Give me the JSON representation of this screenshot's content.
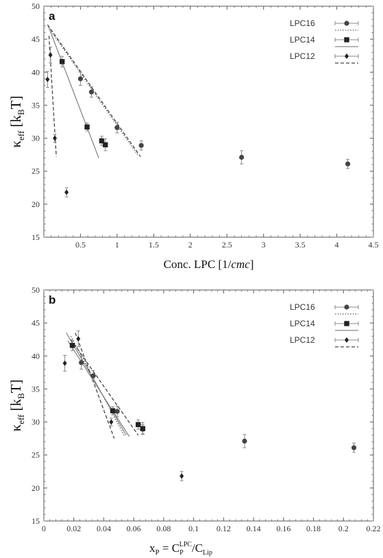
{
  "chart_data": [
    {
      "type": "scatter",
      "panel_label": "a",
      "xlabel": "Conc. LPC [1/cmc]",
      "ylabel": "κ_eff [k_B T]",
      "xlim": [
        0,
        4.5
      ],
      "ylim": [
        15,
        50
      ],
      "xticks": [
        "0.5",
        "1",
        "1.5",
        "2",
        "2.5",
        "3",
        "3.5",
        "4",
        "4.5"
      ],
      "yticks": [
        "15",
        "20",
        "25",
        "30",
        "35",
        "40",
        "45",
        "50"
      ],
      "legend_position": "top-right",
      "series": [
        {
          "name": "LPC16",
          "marker": "circle",
          "line": "dotted",
          "x": [
            0.5,
            0.65,
            1.0,
            1.33,
            2.7,
            4.15
          ],
          "y": [
            39.0,
            37.0,
            31.6,
            28.9,
            27.1,
            26.1
          ],
          "err": [
            1.0,
            0.8,
            0.8,
            0.7,
            1.0,
            0.7
          ],
          "fit": [
            [
              0.08,
              46.5
            ],
            [
              1.28,
              27.5
            ]
          ]
        },
        {
          "name": "LPC14",
          "marker": "square",
          "line": "solid",
          "x": [
            0.25,
            0.59,
            0.79,
            0.84
          ],
          "y": [
            41.6,
            31.7,
            29.6,
            29.0
          ],
          "err": [
            0.8,
            0.6,
            0.7,
            0.9
          ],
          "fit": [
            [
              0.06,
              47.0
            ],
            [
              0.75,
              27.0
            ]
          ]
        },
        {
          "name": "LPC12",
          "marker": "diamond",
          "line": "dashed",
          "x": [
            0.05,
            0.09,
            0.15,
            0.31
          ],
          "y": [
            38.9,
            42.6,
            30.0,
            21.8
          ],
          "err": [
            1.2,
            1.2,
            0.6,
            0.7
          ],
          "fit": [
            [
              0.07,
              45.5
            ],
            [
              0.17,
              27.2
            ]
          ]
        }
      ],
      "extra_fits": [
        {
          "style": "dashed",
          "from": [
            0.05,
            47.2
          ],
          "to": [
            1.32,
            27.2
          ]
        }
      ]
    },
    {
      "type": "scatter",
      "panel_label": "b",
      "xlabel": "x_P = C_P^LPC / C_Lip",
      "ylabel": "κ_eff [k_B T]",
      "xlim": [
        0,
        0.22
      ],
      "ylim": [
        15,
        50
      ],
      "xticks": [
        "0",
        "0.02",
        "0.04",
        "0.06",
        "0.08",
        "0.1",
        "0.12",
        "0.14",
        "0.16",
        "0.18",
        "0.2",
        "0.22"
      ],
      "yticks": [
        "15",
        "20",
        "25",
        "30",
        "35",
        "40",
        "45",
        "50"
      ],
      "legend_position": "top-right",
      "series": [
        {
          "name": "LPC16",
          "marker": "circle",
          "line": "dotted",
          "x": [
            0.025,
            0.033,
            0.049,
            0.066,
            0.134,
            0.207
          ],
          "y": [
            39.0,
            37.0,
            31.6,
            28.9,
            27.1,
            26.1
          ],
          "err": [
            1.0,
            0.8,
            0.8,
            0.7,
            1.0,
            0.7
          ],
          "fit": [
            [
              0.018,
              43.0
            ],
            [
              0.054,
              27.8
            ]
          ]
        },
        {
          "name": "LPC14",
          "marker": "square",
          "line": "solid",
          "x": [
            0.019,
            0.046,
            0.063,
            0.066
          ],
          "y": [
            41.6,
            31.7,
            29.6,
            29.0
          ],
          "err": [
            0.8,
            0.6,
            0.7,
            0.9
          ],
          "fit": [
            [
              0.015,
              43.5
            ],
            [
              0.055,
              28.0
            ]
          ]
        },
        {
          "name": "LPC12",
          "marker": "diamond",
          "line": "dashed",
          "x": [
            0.014,
            0.023,
            0.045,
            0.092
          ],
          "y": [
            38.9,
            42.6,
            30.0,
            21.8
          ],
          "err": [
            1.2,
            1.2,
            0.6,
            0.7
          ],
          "fit": [
            [
              0.021,
              43.5
            ],
            [
              0.047,
              27.5
            ]
          ]
        }
      ],
      "extra_fits": [
        {
          "style": "dashed",
          "from": [
            0.018,
            42.5
          ],
          "to": [
            0.063,
            28.0
          ]
        },
        {
          "style": "solid",
          "from": [
            0.016,
            42.3
          ],
          "to": [
            0.057,
            27.8
          ]
        }
      ]
    }
  ]
}
